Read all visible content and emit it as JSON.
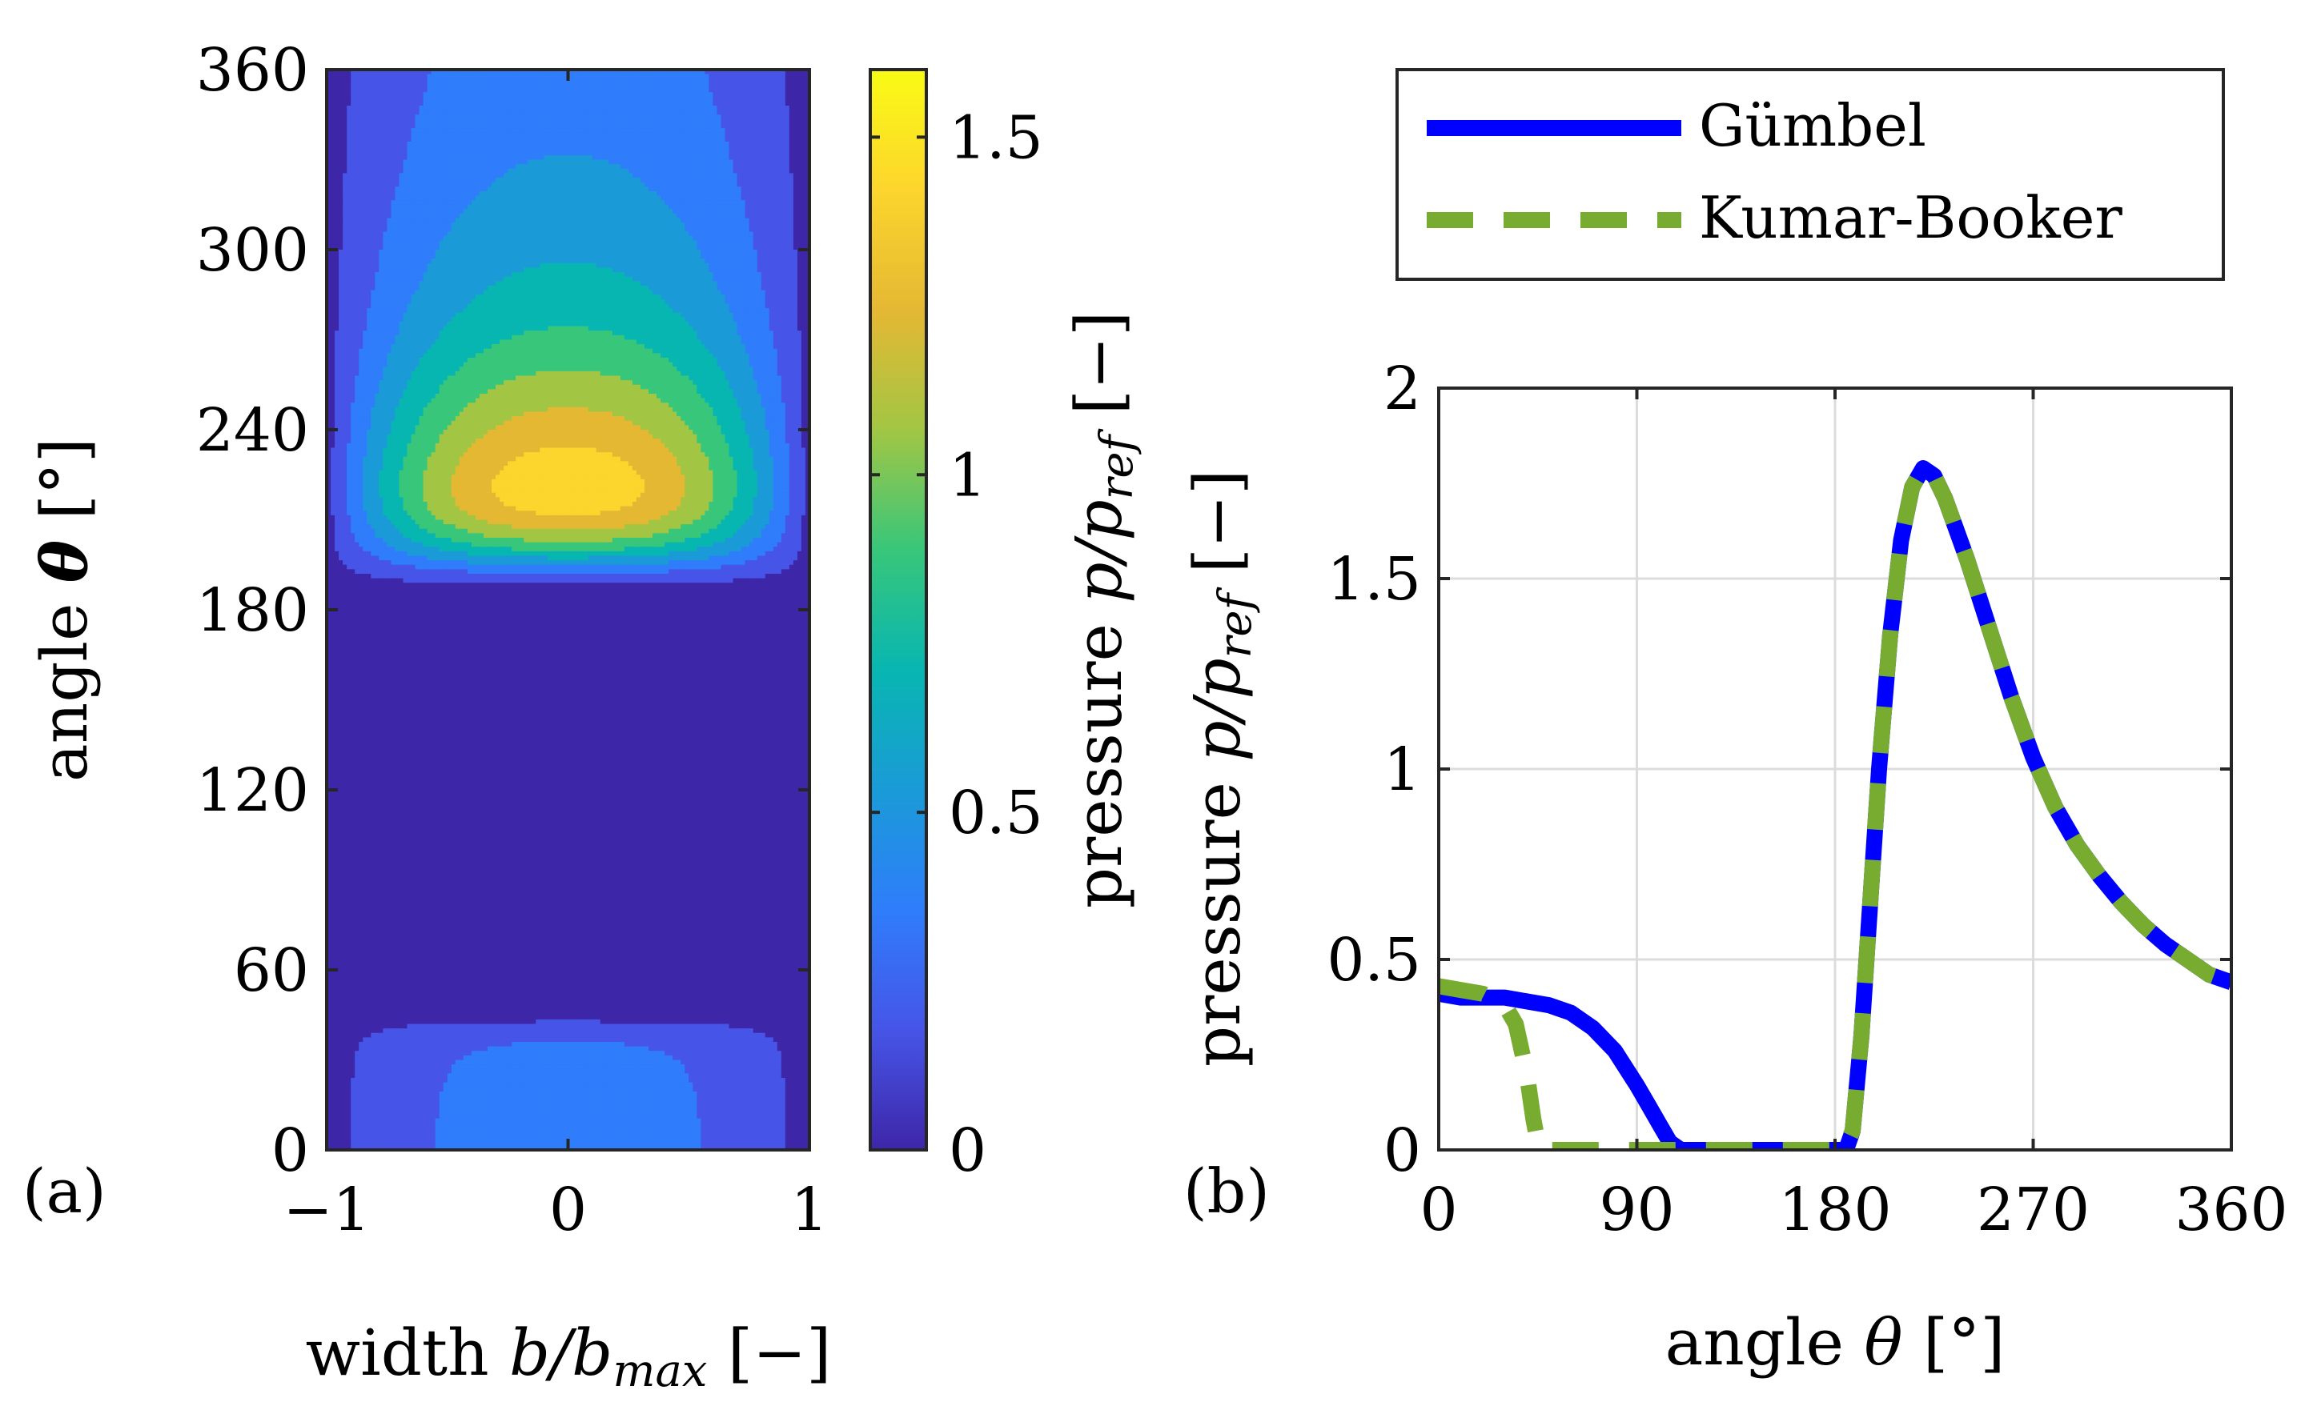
{
  "chart_data": [
    {
      "type": "heatmap",
      "panel_label": "(a)",
      "xlabel": "width b/b_max [−]",
      "xlabel_parts": {
        "pre": "width ",
        "var": "b/b",
        "sub": "max",
        "post": " [−]"
      },
      "ylabel": "angle θ [°]",
      "ylabel_parts": {
        "pre": "angle ",
        "var": "θ",
        "post": " [°]"
      },
      "xlim": [
        -1,
        1
      ],
      "ylim": [
        0,
        360
      ],
      "xticks": [
        "−1",
        "0",
        "1"
      ],
      "yticks": [
        "0",
        "60",
        "120",
        "180",
        "240",
        "300",
        "360"
      ],
      "colorbar": {
        "label": "pressure p/p_ref [−]",
        "label_parts": {
          "pre": "pressure ",
          "var": "p/p",
          "sub": "ref",
          "post": " [−]"
        },
        "lim": [
          0,
          1.6
        ],
        "ticks": [
          "0",
          "0.5",
          "1",
          "1.5"
        ],
        "tick_values": [
          0,
          0.5,
          1,
          1.5
        ],
        "colormap": "parula",
        "colors": [
          "#3e26a8",
          "#4655e7",
          "#2f7dfb",
          "#1a9bd7",
          "#08b6b1",
          "#38c67a",
          "#a2c644",
          "#e5b833",
          "#fcd52d",
          "#f9fb14"
        ]
      },
      "field_description": "pressure field over width b/b_max and angle θ; maximum about 1.6 at b=0, θ≈220°; zero region for θ between about 45° and 187°",
      "contour_levels": [
        0.1,
        0.3,
        0.5,
        0.7,
        0.9,
        1.1,
        1.3,
        1.5
      ]
    },
    {
      "type": "line",
      "panel_label": "(b)",
      "xlabel": "angle θ [°]",
      "xlabel_parts": {
        "pre": "angle ",
        "var": "θ",
        "post": " [°]"
      },
      "ylabel": "pressure p/p_ref [−]",
      "ylabel_parts": {
        "pre": "pressure ",
        "var": "p/p",
        "sub": "ref",
        "post": " [−]"
      },
      "xlim": [
        0,
        360
      ],
      "ylim": [
        0,
        2
      ],
      "xticks": [
        "0",
        "90",
        "180",
        "270",
        "360"
      ],
      "xtick_values": [
        0,
        90,
        180,
        270,
        360
      ],
      "yticks": [
        "0",
        "0.5",
        "1",
        "1.5",
        "2"
      ],
      "ytick_values": [
        0,
        0.5,
        1,
        1.5,
        2
      ],
      "grid": true,
      "legend_position": "above",
      "series": [
        {
          "name": "Gümbel",
          "color": "#0000ff",
          "style": "solid",
          "x": [
            0,
            10,
            20,
            30,
            40,
            50,
            60,
            70,
            80,
            90,
            95,
            100,
            105,
            110,
            120,
            140,
            160,
            180,
            185,
            188,
            192,
            196,
            200,
            205,
            210,
            215,
            220,
            225,
            230,
            240,
            250,
            260,
            270,
            280,
            290,
            300,
            310,
            320,
            330,
            340,
            350,
            360
          ],
          "y": [
            0.41,
            0.4,
            0.4,
            0.4,
            0.39,
            0.38,
            0.36,
            0.32,
            0.26,
            0.17,
            0.12,
            0.07,
            0.02,
            0.0,
            0.0,
            0.0,
            0.0,
            0.0,
            0.0,
            0.05,
            0.3,
            0.65,
            1.0,
            1.35,
            1.6,
            1.74,
            1.79,
            1.77,
            1.71,
            1.55,
            1.37,
            1.19,
            1.03,
            0.9,
            0.8,
            0.72,
            0.65,
            0.59,
            0.54,
            0.5,
            0.46,
            0.44
          ]
        },
        {
          "name": "Kumar-Booker",
          "color": "#77ac30",
          "style": "dashed",
          "x": [
            0,
            10,
            20,
            30,
            35,
            40,
            43,
            45,
            47,
            50,
            60,
            90,
            120,
            150,
            180,
            184,
            188,
            192,
            196,
            200,
            205,
            210,
            215,
            220,
            225,
            230,
            240,
            250,
            260,
            270,
            280,
            290,
            300,
            310,
            320,
            330,
            340,
            350,
            360
          ],
          "y": [
            0.43,
            0.42,
            0.41,
            0.38,
            0.33,
            0.2,
            0.08,
            0.02,
            0.0,
            0.0,
            0.0,
            0.0,
            0.0,
            0.0,
            0.0,
            0.0,
            0.05,
            0.3,
            0.65,
            1.0,
            1.35,
            1.6,
            1.74,
            1.79,
            1.77,
            1.71,
            1.55,
            1.37,
            1.19,
            1.03,
            0.9,
            0.8,
            0.72,
            0.65,
            0.59,
            0.54,
            0.5,
            0.46,
            0.44
          ]
        }
      ]
    }
  ]
}
